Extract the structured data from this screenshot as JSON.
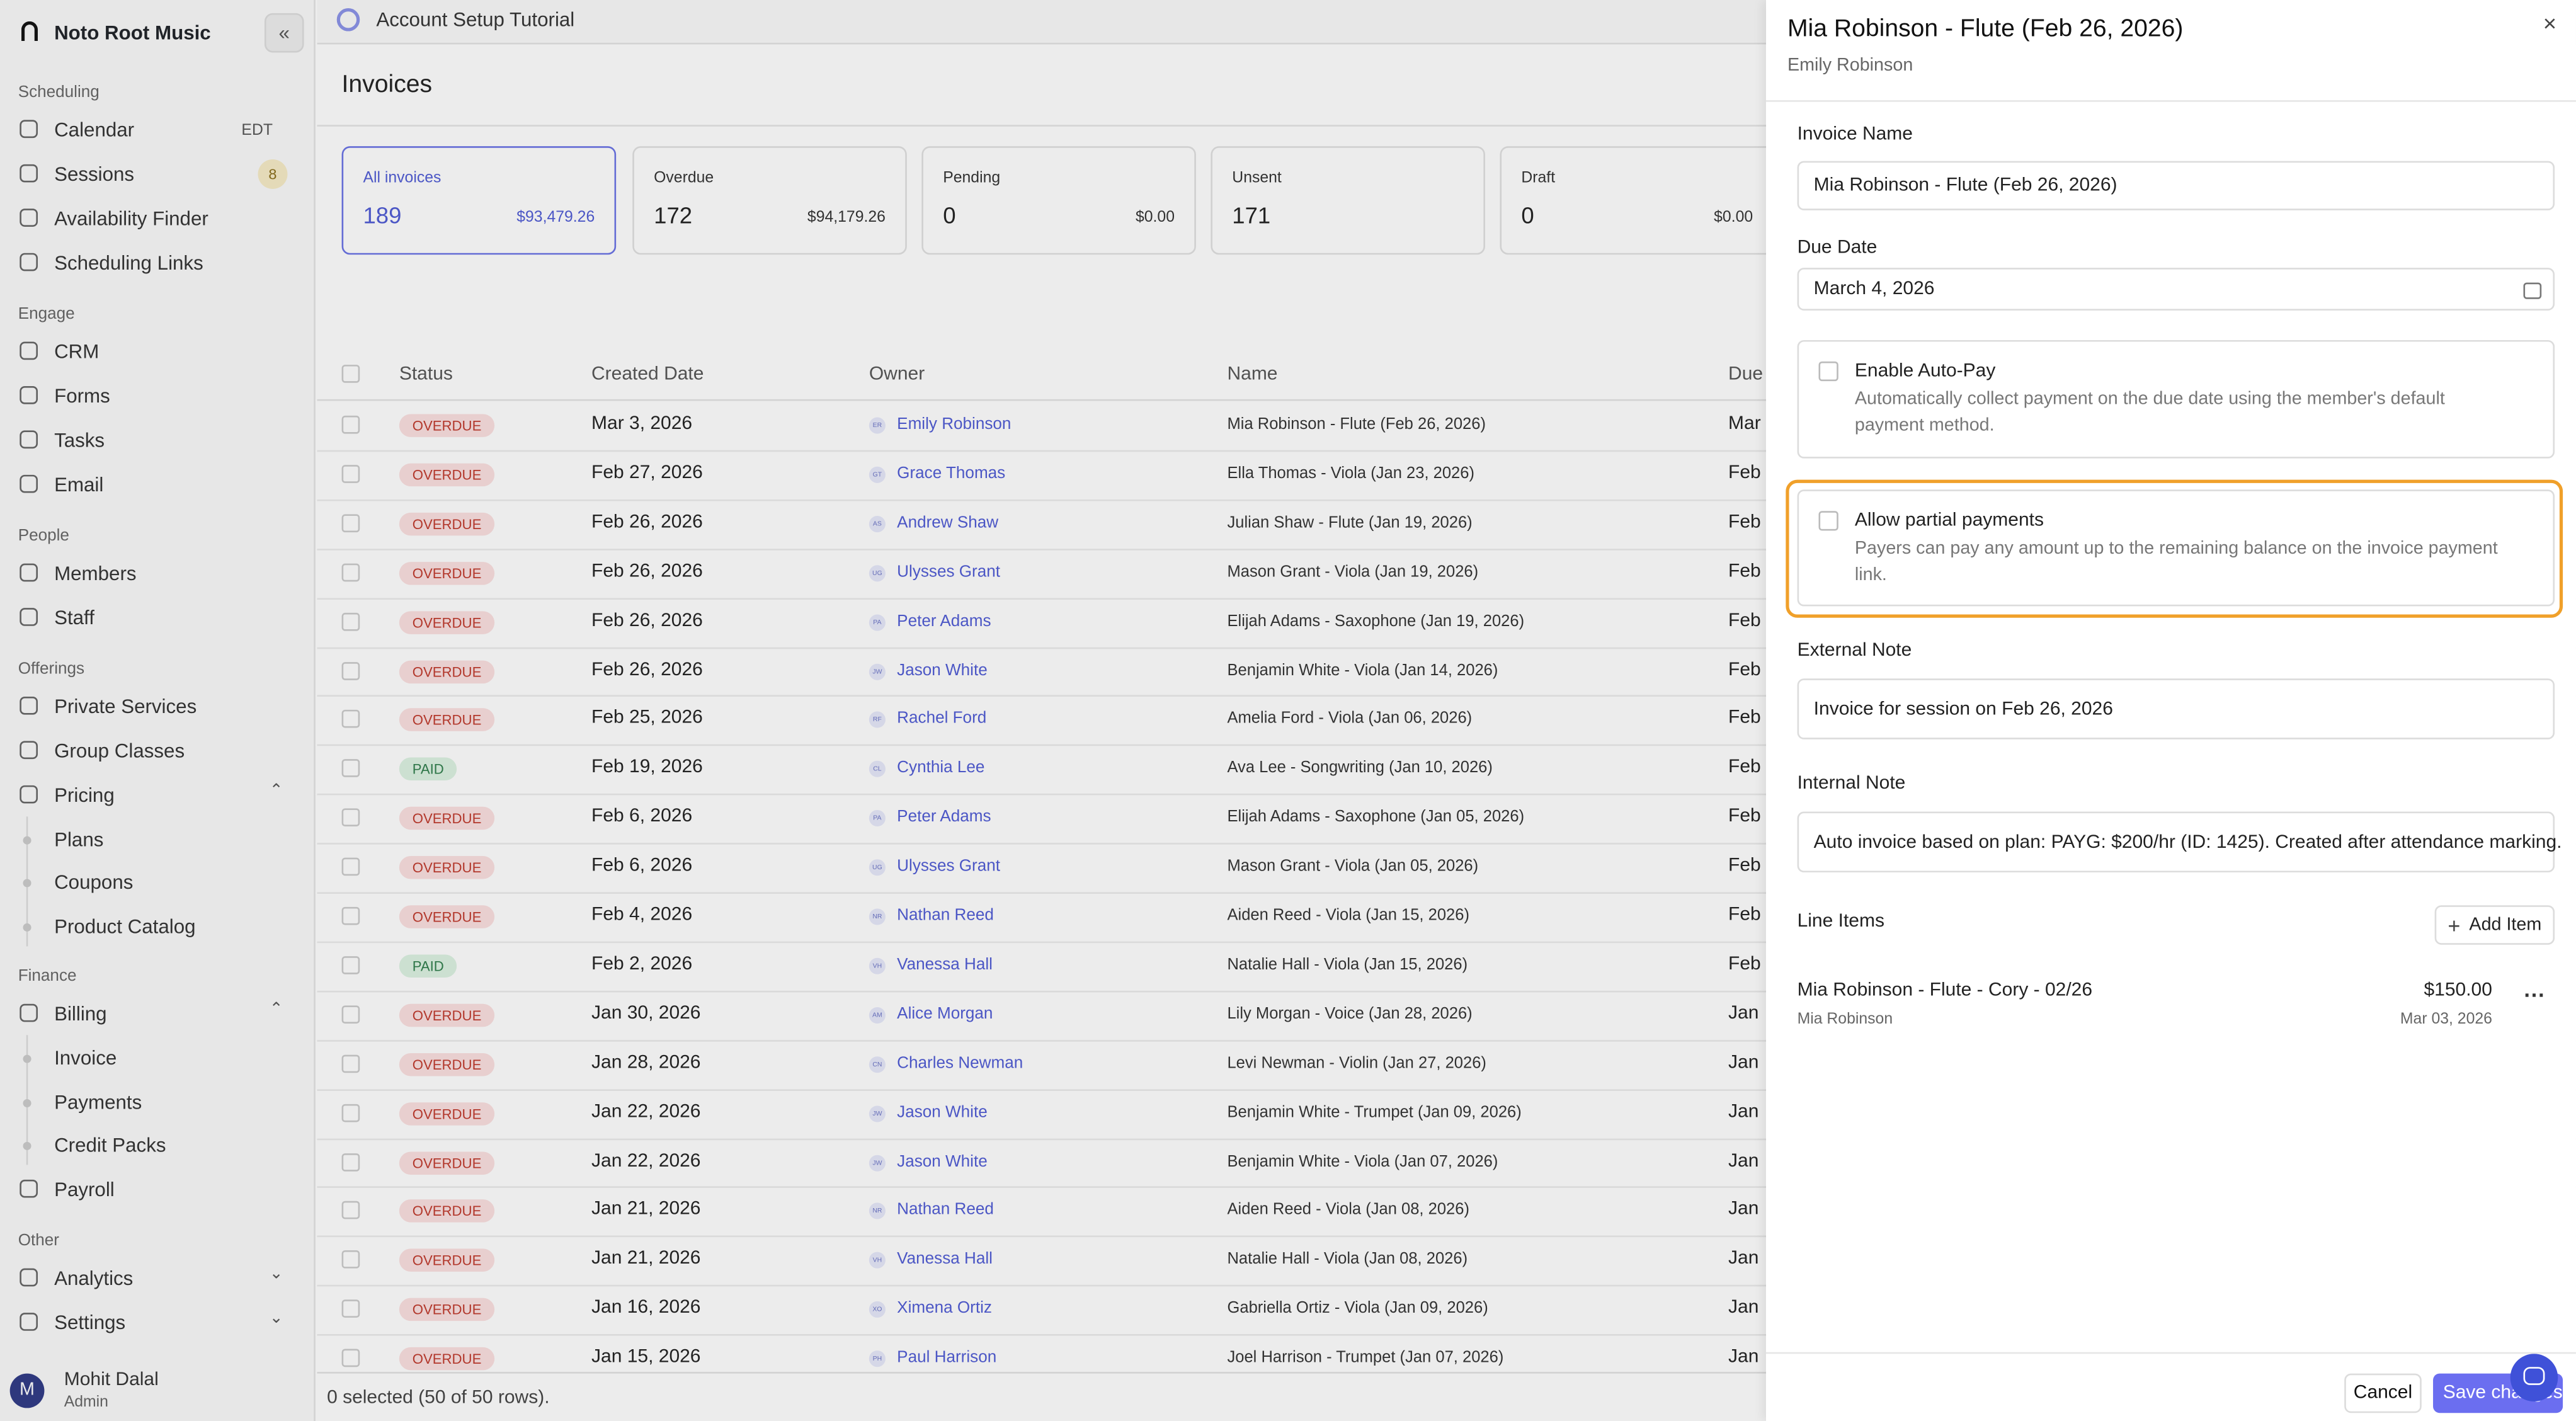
{
  "sidebar": {
    "org": "Noto Root Music",
    "sections": [
      {
        "title": "Scheduling",
        "items": [
          {
            "label": "Calendar",
            "extra": "EDT"
          },
          {
            "label": "Sessions",
            "badge": 8
          },
          {
            "label": "Availability Finder"
          },
          {
            "label": "Scheduling Links"
          }
        ]
      },
      {
        "title": "Engage",
        "items": [
          {
            "label": "CRM"
          },
          {
            "label": "Forms"
          },
          {
            "label": "Tasks"
          },
          {
            "label": "Email"
          }
        ]
      },
      {
        "title": "People",
        "items": [
          {
            "label": "Members"
          },
          {
            "label": "Staff"
          }
        ]
      },
      {
        "title": "Offerings",
        "items": [
          {
            "label": "Private Services"
          },
          {
            "label": "Group Classes"
          },
          {
            "label": "Pricing",
            "children": [
              "Plans",
              "Coupons",
              "Product Catalog"
            ]
          }
        ]
      },
      {
        "title": "Finance",
        "items": [
          {
            "label": "Billing",
            "children": [
              "Invoice",
              "Payments",
              "Credit Packs"
            ]
          },
          {
            "label": "Payroll"
          }
        ]
      },
      {
        "title": "Other",
        "items": [
          {
            "label": "Analytics",
            "collapsed": true
          },
          {
            "label": "Settings",
            "collapsed": true
          }
        ]
      }
    ],
    "user": {
      "initial": "M",
      "name": "Mohit Dalal",
      "role": "Admin"
    }
  },
  "topbar": {
    "tutorial": "Account Setup Tutorial"
  },
  "page": {
    "title": "Invoices",
    "cards": [
      {
        "label": "All invoices",
        "count": 189,
        "amount": "$93,479.26"
      },
      {
        "label": "Overdue",
        "count": 172,
        "amount": "$94,179.26"
      },
      {
        "label": "Pending",
        "count": 0,
        "amount": "$0.00"
      },
      {
        "label": "Unsent",
        "count": 171
      },
      {
        "label": "Draft",
        "count": 0,
        "amount": "$0.00"
      }
    ],
    "table": {
      "headers": [
        "Status",
        "Created Date",
        "Owner",
        "Name",
        "Due"
      ],
      "rows": [
        [
          "OVERDUE",
          "Mar 3, 2026",
          "ER",
          "Emily Robinson",
          "Mia Robinson - Flute (Feb 26, 2026)",
          "Mar"
        ],
        [
          "OVERDUE",
          "Feb 27, 2026",
          "GT",
          "Grace Thomas",
          "Ella Thomas - Viola (Jan 23, 2026)",
          "Feb"
        ],
        [
          "OVERDUE",
          "Feb 26, 2026",
          "AS",
          "Andrew Shaw",
          "Julian Shaw - Flute (Jan 19, 2026)",
          "Feb"
        ],
        [
          "OVERDUE",
          "Feb 26, 2026",
          "UG",
          "Ulysses Grant",
          "Mason Grant - Viola (Jan 19, 2026)",
          "Feb"
        ],
        [
          "OVERDUE",
          "Feb 26, 2026",
          "PA",
          "Peter Adams",
          "Elijah Adams - Saxophone (Jan 19, 2026)",
          "Feb"
        ],
        [
          "OVERDUE",
          "Feb 26, 2026",
          "JW",
          "Jason White",
          "Benjamin White - Viola (Jan 14, 2026)",
          "Feb"
        ],
        [
          "OVERDUE",
          "Feb 25, 2026",
          "RF",
          "Rachel Ford",
          "Amelia Ford - Viola (Jan 06, 2026)",
          "Feb"
        ],
        [
          "PAID",
          "Feb 19, 2026",
          "CL",
          "Cynthia Lee",
          "Ava Lee - Songwriting (Jan 10, 2026)",
          "Feb"
        ],
        [
          "OVERDUE",
          "Feb 6, 2026",
          "PA",
          "Peter Adams",
          "Elijah Adams - Saxophone (Jan 05, 2026)",
          "Feb"
        ],
        [
          "OVERDUE",
          "Feb 6, 2026",
          "UG",
          "Ulysses Grant",
          "Mason Grant - Viola (Jan 05, 2026)",
          "Feb"
        ],
        [
          "OVERDUE",
          "Feb 4, 2026",
          "NR",
          "Nathan Reed",
          "Aiden Reed - Viola (Jan 15, 2026)",
          "Feb"
        ],
        [
          "PAID",
          "Feb 2, 2026",
          "VH",
          "Vanessa Hall",
          "Natalie Hall - Viola (Jan 15, 2026)",
          "Feb"
        ],
        [
          "OVERDUE",
          "Jan 30, 2026",
          "AM",
          "Alice Morgan",
          "Lily Morgan - Voice (Jan 28, 2026)",
          "Jan"
        ],
        [
          "OVERDUE",
          "Jan 28, 2026",
          "CN",
          "Charles Newman",
          "Levi Newman - Violin (Jan 27, 2026)",
          "Jan"
        ],
        [
          "OVERDUE",
          "Jan 22, 2026",
          "JW",
          "Jason White",
          "Benjamin White - Trumpet (Jan 09, 2026)",
          "Jan"
        ],
        [
          "OVERDUE",
          "Jan 22, 2026",
          "JW",
          "Jason White",
          "Benjamin White - Viola (Jan 07, 2026)",
          "Jan"
        ],
        [
          "OVERDUE",
          "Jan 21, 2026",
          "NR",
          "Nathan Reed",
          "Aiden Reed - Viola (Jan 08, 2026)",
          "Jan"
        ],
        [
          "OVERDUE",
          "Jan 21, 2026",
          "VH",
          "Vanessa Hall",
          "Natalie Hall - Viola (Jan 08, 2026)",
          "Jan"
        ],
        [
          "OVERDUE",
          "Jan 16, 2026",
          "XO",
          "Ximena Ortiz",
          "Gabriella Ortiz - Viola (Jan 09, 2026)",
          "Jan"
        ],
        [
          "OVERDUE",
          "Jan 15, 2026",
          "PH",
          "Paul Harrison",
          "Joel Harrison - Trumpet (Jan 07, 2026)",
          "Jan"
        ]
      ],
      "footer": "0 selected (50 of 50 rows)."
    }
  },
  "panel": {
    "title": "Mia Robinson - Flute (Feb 26, 2026)",
    "subtitle": "Emily Robinson",
    "invoice_name": {
      "label": "Invoice Name",
      "value": "Mia Robinson - Flute (Feb 26, 2026)"
    },
    "due_date": {
      "label": "Due Date",
      "value": "March 4, 2026"
    },
    "auto_pay": {
      "title": "Enable Auto-Pay",
      "description": "Automatically collect payment on the due date using the member's default payment method."
    },
    "partial_payments": {
      "title": "Allow partial payments",
      "description": "Payers can pay any amount up to the remaining balance on the invoice payment link."
    },
    "external_note": {
      "label": "External Note",
      "value": "Invoice for session on Feb 26, 2026"
    },
    "internal_note": {
      "label": "Internal Note",
      "value": "Auto invoice based on plan: PAYG: $200/hr (ID: 1425). Created after attendance marking."
    },
    "line_items": {
      "title": "Line Items",
      "add_button": "Add Item",
      "items": [
        {
          "name": "Mia Robinson - Flute - Cory - 02/26",
          "member": "Mia Robinson",
          "amount": "$150.00",
          "date": "Mar 03, 2026"
        }
      ]
    },
    "buttons": {
      "cancel": "Cancel",
      "save": "Save changes"
    }
  }
}
